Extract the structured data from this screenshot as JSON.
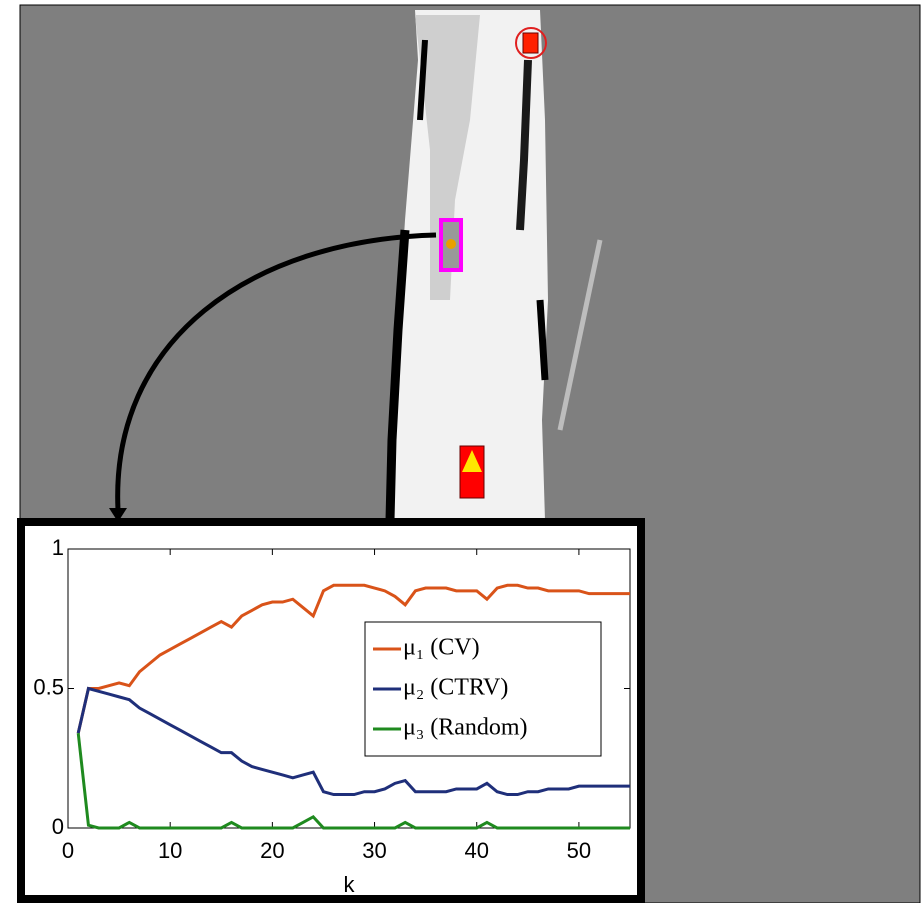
{
  "chart_data": {
    "type": "line",
    "x_label": "k",
    "x": [
      1,
      2,
      3,
      4,
      5,
      6,
      7,
      8,
      9,
      10,
      11,
      12,
      13,
      14,
      15,
      16,
      17,
      18,
      19,
      20,
      21,
      22,
      23,
      24,
      25,
      26,
      27,
      28,
      29,
      30,
      31,
      32,
      33,
      34,
      35,
      36,
      37,
      38,
      39,
      40,
      41,
      42,
      43,
      44,
      45,
      46,
      47,
      48,
      49,
      50,
      51,
      52,
      53,
      54,
      55
    ],
    "series": [
      {
        "name": "μ₁ (CV)",
        "color": "#d95319",
        "values": [
          0.34,
          0.5,
          0.5,
          0.51,
          0.52,
          0.51,
          0.56,
          0.59,
          0.62,
          0.64,
          0.66,
          0.68,
          0.7,
          0.72,
          0.74,
          0.72,
          0.76,
          0.78,
          0.8,
          0.81,
          0.81,
          0.82,
          0.79,
          0.76,
          0.85,
          0.87,
          0.87,
          0.87,
          0.87,
          0.86,
          0.85,
          0.83,
          0.8,
          0.85,
          0.86,
          0.86,
          0.86,
          0.85,
          0.85,
          0.85,
          0.82,
          0.86,
          0.87,
          0.87,
          0.86,
          0.86,
          0.85,
          0.85,
          0.85,
          0.85,
          0.84,
          0.84,
          0.84,
          0.84,
          0.84
        ]
      },
      {
        "name": "μ₂ (CTRV)",
        "color": "#1f2f7a",
        "values": [
          0.34,
          0.5,
          0.49,
          0.48,
          0.47,
          0.46,
          0.43,
          0.41,
          0.39,
          0.37,
          0.35,
          0.33,
          0.31,
          0.29,
          0.27,
          0.27,
          0.24,
          0.22,
          0.21,
          0.2,
          0.19,
          0.18,
          0.19,
          0.2,
          0.13,
          0.12,
          0.12,
          0.12,
          0.13,
          0.13,
          0.14,
          0.16,
          0.17,
          0.13,
          0.13,
          0.13,
          0.13,
          0.14,
          0.14,
          0.14,
          0.16,
          0.13,
          0.12,
          0.12,
          0.13,
          0.13,
          0.14,
          0.14,
          0.14,
          0.15,
          0.15,
          0.15,
          0.15,
          0.15,
          0.15
        ]
      },
      {
        "name": "μ₃ (Random)",
        "color": "#1f8a1f",
        "values": [
          0.34,
          0.01,
          0,
          0,
          0,
          0.02,
          0,
          0,
          0,
          0,
          0,
          0,
          0,
          0,
          0,
          0.02,
          0,
          0,
          0,
          0,
          0,
          0,
          0.02,
          0.04,
          0,
          0,
          0,
          0,
          0,
          0,
          0,
          0,
          0.02,
          0,
          0,
          0,
          0,
          0,
          0,
          0,
          0.02,
          0,
          0,
          0,
          0,
          0,
          0,
          0,
          0,
          0,
          0,
          0,
          0,
          0,
          0
        ]
      }
    ],
    "xlim": [
      0,
      55
    ],
    "xticks": [
      0,
      10,
      20,
      30,
      40,
      50
    ],
    "ylim": [
      0,
      1
    ],
    "yticks": [
      0,
      0.5,
      1
    ],
    "legend": "upper right"
  }
}
